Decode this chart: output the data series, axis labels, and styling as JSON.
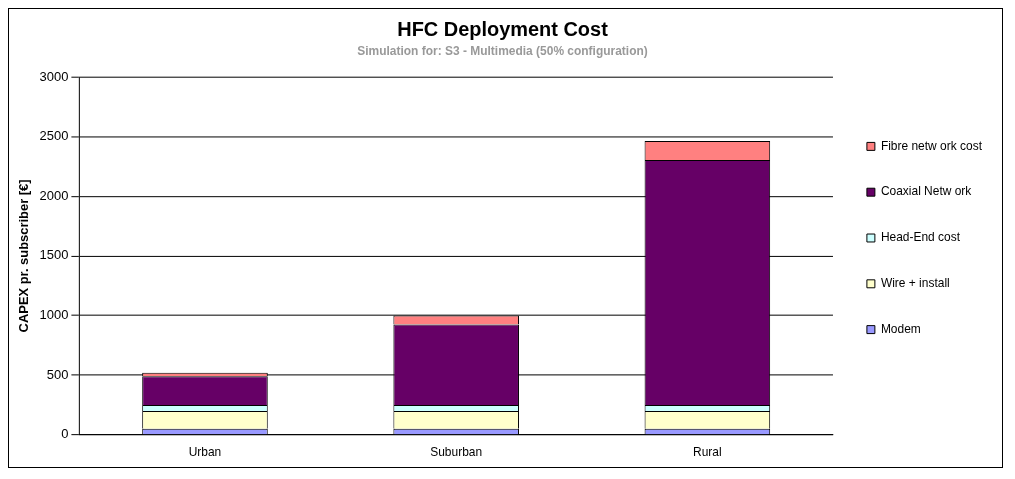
{
  "chart_data": {
    "type": "bar",
    "title": "HFC Deployment Cost",
    "subtitle": "Simulation for: S3 - Multimedia (50% configuration)",
    "ylabel": "CAPEX pr. subscriber [€]",
    "categories": [
      "Urban",
      "Suburban",
      "Rural"
    ],
    "stacked": true,
    "series": [
      {
        "name": "Modem",
        "color": "#9999ff",
        "values": [
          50,
          50,
          50
        ]
      },
      {
        "name": "Wire + install",
        "color": "#ffffcc",
        "values": [
          150,
          150,
          150
        ]
      },
      {
        "name": "Head-End cost",
        "color": "#ccffff",
        "values": [
          50,
          50,
          50
        ]
      },
      {
        "name": "Coaxial Netw ork",
        "color": "#660066",
        "values": [
          240,
          675,
          2055
        ]
      },
      {
        "name": "Fibre netw ork cost",
        "color": "#ff8080",
        "values": [
          30,
          75,
          160
        ]
      }
    ],
    "ylim": [
      0,
      3000
    ],
    "yticks": [
      0,
      500,
      1000,
      1500,
      2000,
      2500,
      3000
    ],
    "grid": "y",
    "legend": "right"
  }
}
